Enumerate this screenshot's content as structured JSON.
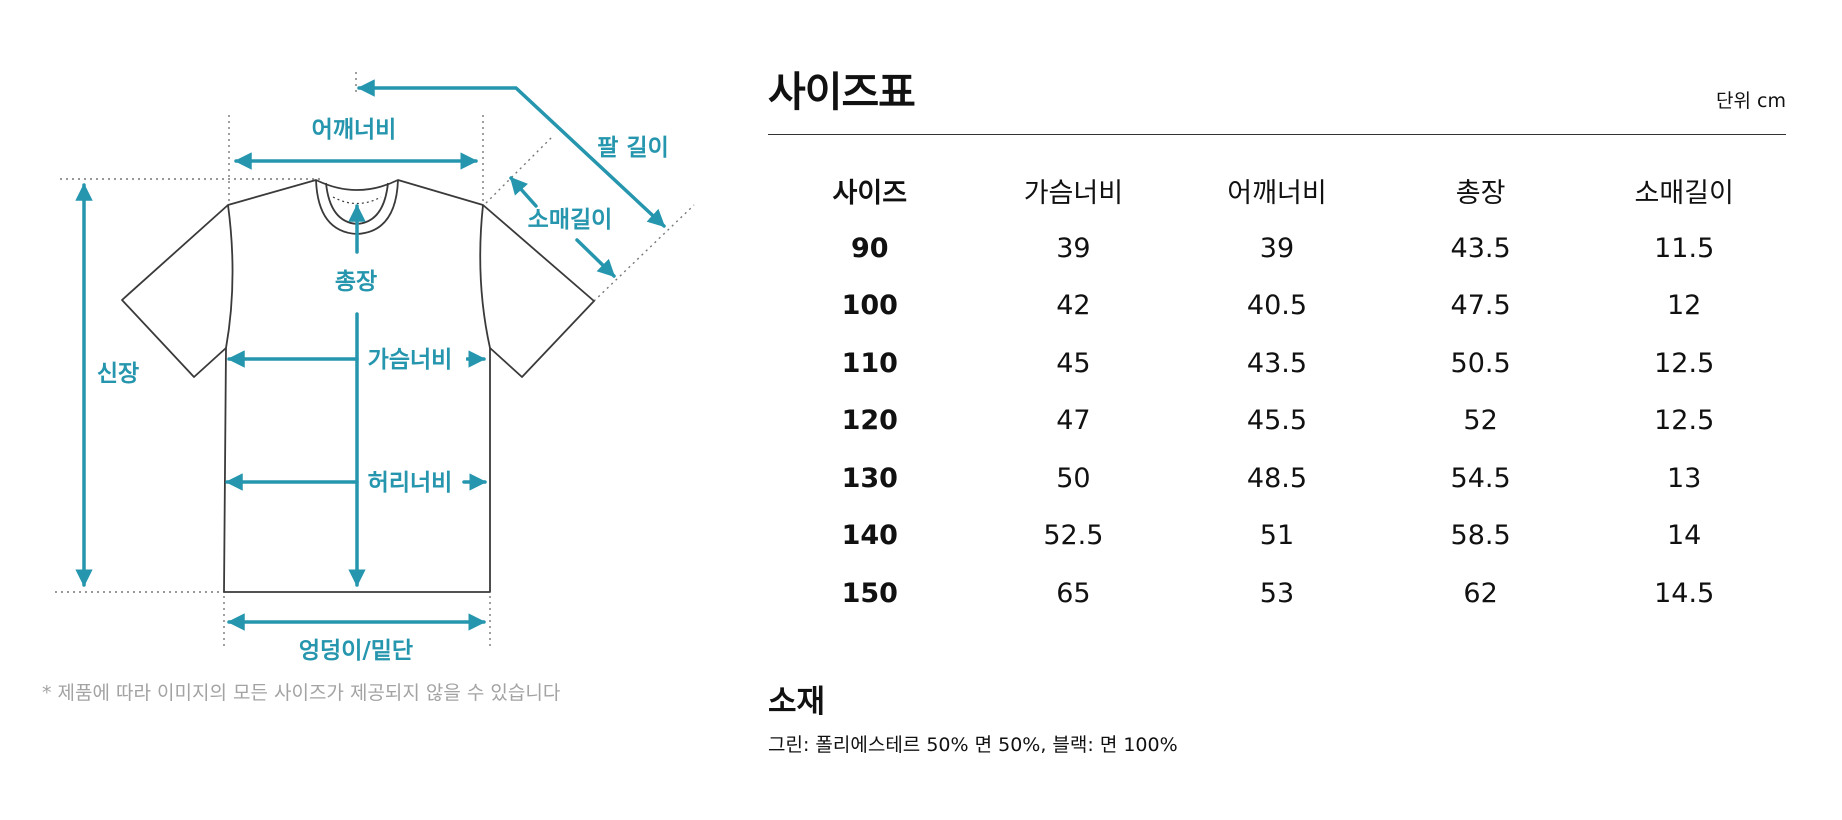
{
  "diagram": {
    "labels": {
      "shoulder_width": "어깨너비",
      "arm_length": "팔 길이",
      "sleeve_length": "소매길이",
      "total_length": "총장",
      "height": "신장",
      "chest_width": "가슴너비",
      "waist_width": "허리너비",
      "hem_width": "엉덩이/밑단"
    },
    "accent_color": "#2596ae",
    "disclaimer": "* 제품에 따라 이미지의 모든 사이즈가 제공되지 않을 수 있습니다"
  },
  "size_chart": {
    "title": "사이즈표",
    "unit": "단위 cm",
    "columns": [
      "사이즈",
      "가슴너비",
      "어깨너비",
      "총장",
      "소매길이"
    ],
    "rows": [
      [
        "90",
        "39",
        "39",
        "43.5",
        "11.5"
      ],
      [
        "100",
        "42",
        "40.5",
        "47.5",
        "12"
      ],
      [
        "110",
        "45",
        "43.5",
        "50.5",
        "12.5"
      ],
      [
        "120",
        "47",
        "45.5",
        "52",
        "12.5"
      ],
      [
        "130",
        "50",
        "48.5",
        "54.5",
        "13"
      ],
      [
        "140",
        "52.5",
        "51",
        "58.5",
        "14"
      ],
      [
        "150",
        "65",
        "53",
        "62",
        "14.5"
      ]
    ]
  },
  "material": {
    "title": "소재",
    "text": "그린: 폴리에스테르 50% 면 50%, 블랙: 면 100%"
  }
}
